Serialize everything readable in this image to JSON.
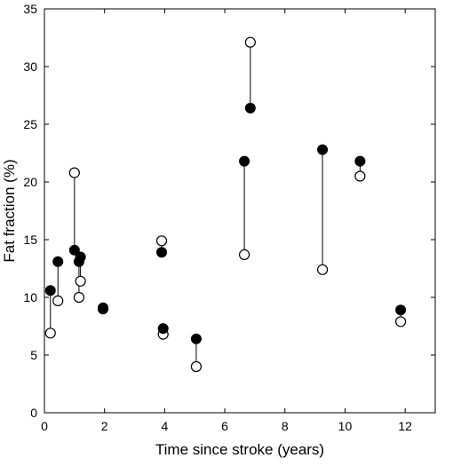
{
  "chart_data": {
    "type": "scatter",
    "title": "",
    "xlabel": "Time since stroke (years)",
    "ylabel": "Fat fraction (%)",
    "xlim": [
      0,
      13
    ],
    "ylim": [
      0,
      35
    ],
    "x_ticks": [
      0,
      2,
      4,
      6,
      8,
      10,
      12
    ],
    "y_ticks": [
      0,
      5,
      10,
      15,
      20,
      25,
      30,
      35
    ],
    "grid": false,
    "legend": "none",
    "series": [
      {
        "marker": "filled-circle",
        "color": "#000000",
        "points": [
          {
            "x": 0.2,
            "y": 10.6
          },
          {
            "x": 0.45,
            "y": 13.1
          },
          {
            "x": 1.0,
            "y": 14.1
          },
          {
            "x": 1.15,
            "y": 13.1
          },
          {
            "x": 1.2,
            "y": 13.5
          },
          {
            "x": 1.95,
            "y": 9.1
          },
          {
            "x": 3.9,
            "y": 13.9
          },
          {
            "x": 3.95,
            "y": 7.3
          },
          {
            "x": 5.05,
            "y": 6.4
          },
          {
            "x": 6.65,
            "y": 21.8
          },
          {
            "x": 6.85,
            "y": 26.4
          },
          {
            "x": 9.25,
            "y": 22.8
          },
          {
            "x": 10.5,
            "y": 21.8
          },
          {
            "x": 11.85,
            "y": 8.9
          }
        ]
      },
      {
        "marker": "open-circle",
        "color": "#000000",
        "points": [
          {
            "x": 0.2,
            "y": 6.9
          },
          {
            "x": 0.45,
            "y": 9.7
          },
          {
            "x": 1.0,
            "y": 20.8
          },
          {
            "x": 1.15,
            "y": 10.0
          },
          {
            "x": 1.2,
            "y": 11.4
          },
          {
            "x": 1.95,
            "y": 9.0
          },
          {
            "x": 3.9,
            "y": 14.9
          },
          {
            "x": 3.95,
            "y": 6.8
          },
          {
            "x": 5.05,
            "y": 4.0
          },
          {
            "x": 6.65,
            "y": 13.7
          },
          {
            "x": 6.85,
            "y": 32.1
          },
          {
            "x": 9.25,
            "y": 12.4
          },
          {
            "x": 10.5,
            "y": 20.5
          },
          {
            "x": 11.85,
            "y": 7.9
          }
        ]
      }
    ]
  }
}
